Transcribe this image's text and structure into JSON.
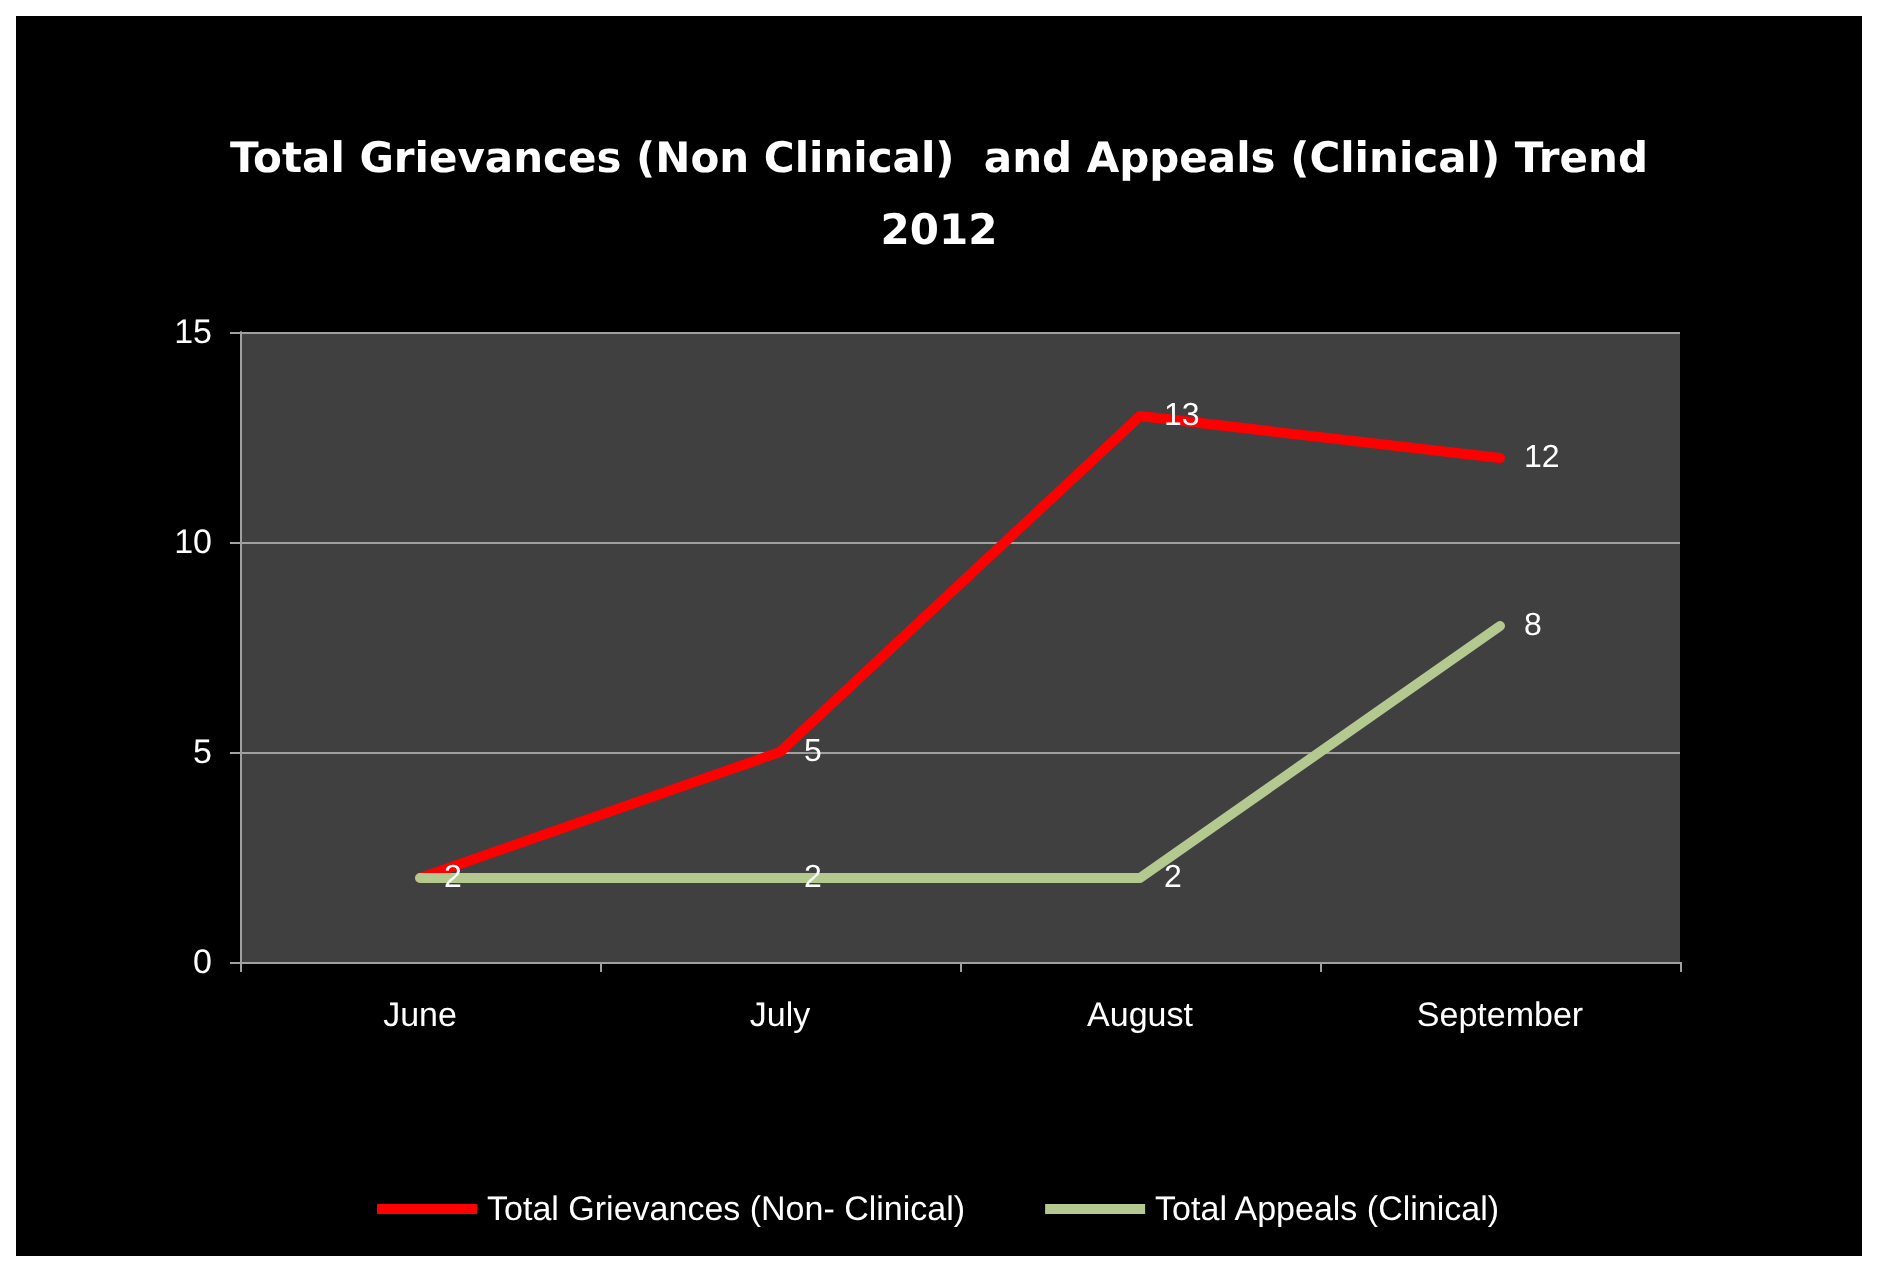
{
  "chart_data": {
    "type": "line",
    "title": "Total Grievances (Non Clinical)  and Appeals (Clinical) Trend\n2012",
    "categories": [
      "June",
      "July",
      "August",
      "September"
    ],
    "series": [
      {
        "name": "Total Grievances (Non- Clinical)",
        "color": "#ff0000",
        "values": [
          2,
          5,
          13,
          12
        ]
      },
      {
        "name": "Total Appeals (Clinical)",
        "color": "#b4c98f",
        "values": [
          2,
          2,
          2,
          8
        ],
        "value_labels": [
          null,
          "2",
          "2",
          "8"
        ]
      }
    ],
    "ylim": [
      0,
      15
    ],
    "yticks": [
      0,
      5,
      10,
      15
    ],
    "grid": "y",
    "legend": "bottom",
    "marker": "none",
    "line_style": "solid",
    "data_labels": true
  }
}
